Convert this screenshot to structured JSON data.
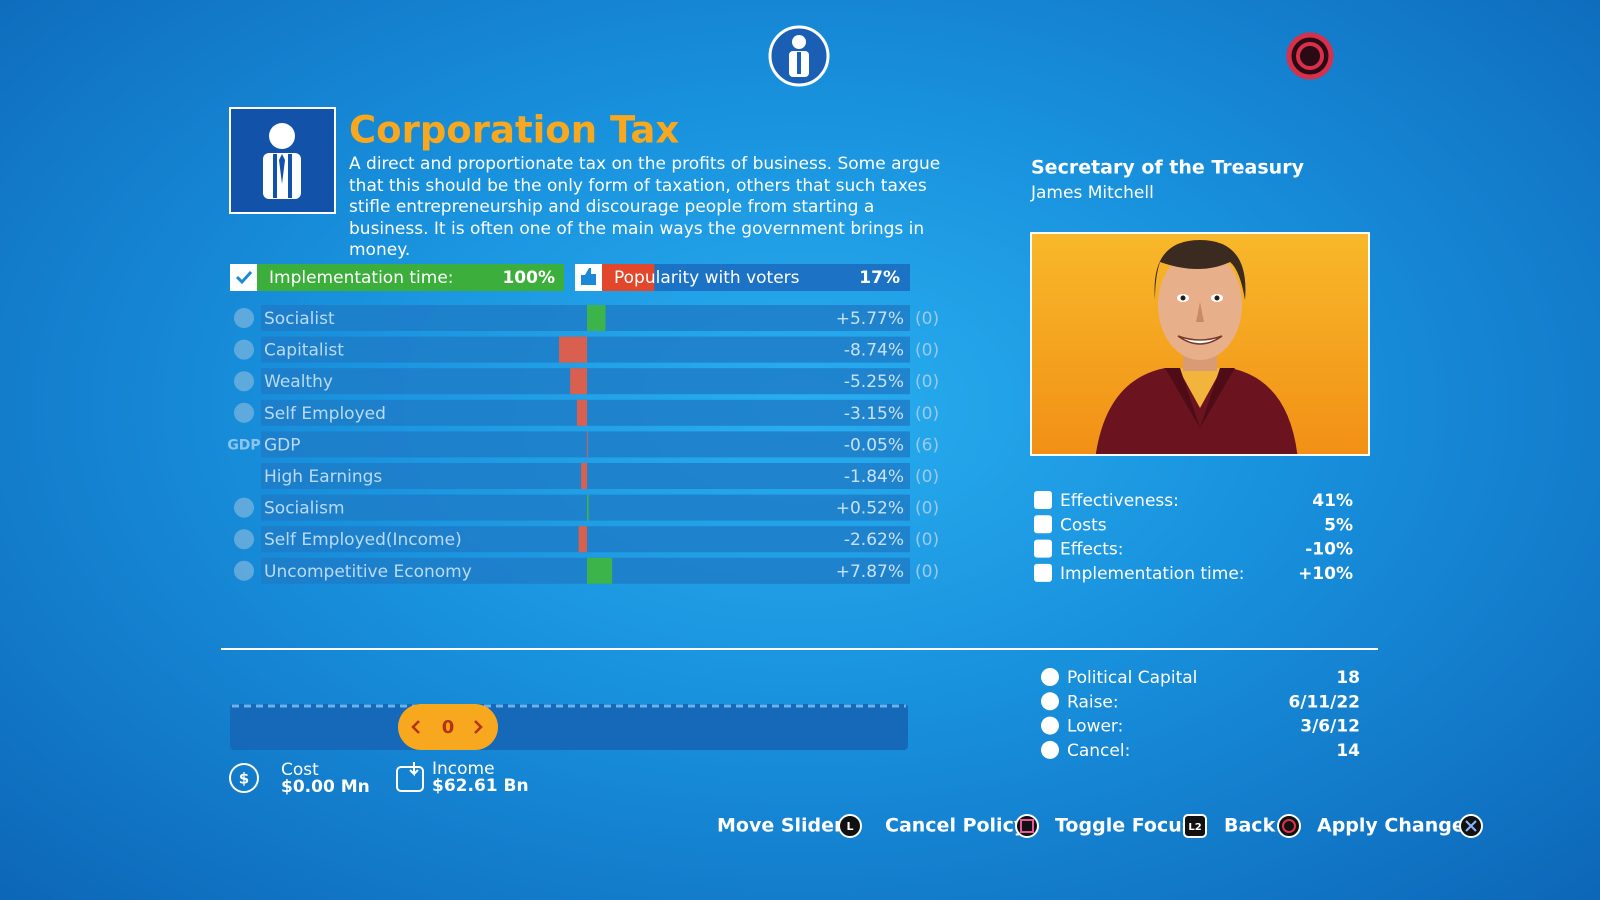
{
  "policy": {
    "title": "Corporation Tax",
    "description": "A direct and proportionate tax on the profits of business. Some argue that this should be the only form of taxation, others that such taxes stifle entrepreneurship and discourage people from starting a business. It is often one of the main ways the government brings in money.",
    "implementation": {
      "label": "Implementation time:",
      "value": 100,
      "value_label": "100%"
    },
    "popularity": {
      "label": "Popularity with voters",
      "value": 17,
      "value_label": "17%"
    }
  },
  "effects": [
    {
      "name": "Socialist",
      "value": 5.77,
      "label": "+5.77%",
      "delay": "(0)"
    },
    {
      "name": "Capitalist",
      "value": -8.74,
      "label": "-8.74%",
      "delay": "(0)"
    },
    {
      "name": "Wealthy",
      "value": -5.25,
      "label": "-5.25%",
      "delay": "(0)"
    },
    {
      "name": "Self Employed",
      "value": -3.15,
      "label": "-3.15%",
      "delay": "(0)"
    },
    {
      "name": "GDP",
      "value": -0.05,
      "label": "-0.05%",
      "delay": "(6)",
      "icon_text": "GDP"
    },
    {
      "name": "High Earnings",
      "value": -1.84,
      "label": "-1.84%",
      "delay": "(0)"
    },
    {
      "name": "Socialism",
      "value": 0.52,
      "label": "+0.52%",
      "delay": "(0)"
    },
    {
      "name": "Self Employed(Income)",
      "value": -2.62,
      "label": "-2.62%",
      "delay": "(0)"
    },
    {
      "name": "Uncompetitive Economy",
      "value": 7.87,
      "label": "+7.87%",
      "delay": "(0)"
    }
  ],
  "minister": {
    "role": "Secretary of the Treasury",
    "name": "James Mitchell",
    "stats": [
      {
        "label": "Effectiveness:",
        "value": "41%"
      },
      {
        "label": "Costs",
        "value": "5%"
      },
      {
        "label": "Effects:",
        "value": "-10%"
      },
      {
        "label": "Implementation time:",
        "value": "+10%"
      }
    ]
  },
  "capital": [
    {
      "label": "Political Capital",
      "value": "18"
    },
    {
      "label": "Raise:",
      "value": "6/11/22"
    },
    {
      "label": "Lower:",
      "value": "3/6/12"
    },
    {
      "label": "Cancel:",
      "value": "14"
    }
  ],
  "slider": {
    "value": "0"
  },
  "cost": {
    "label": "Cost",
    "value": "$0.00 Mn"
  },
  "income": {
    "label": "Income",
    "value": "$62.61 Bn"
  },
  "hints": [
    {
      "label": "Move Slider",
      "button": "L"
    },
    {
      "label": "Cancel Policy"
    },
    {
      "label": "Toggle Focus",
      "button": "L2"
    },
    {
      "label": "Back"
    },
    {
      "label": "Apply Changes"
    }
  ]
}
